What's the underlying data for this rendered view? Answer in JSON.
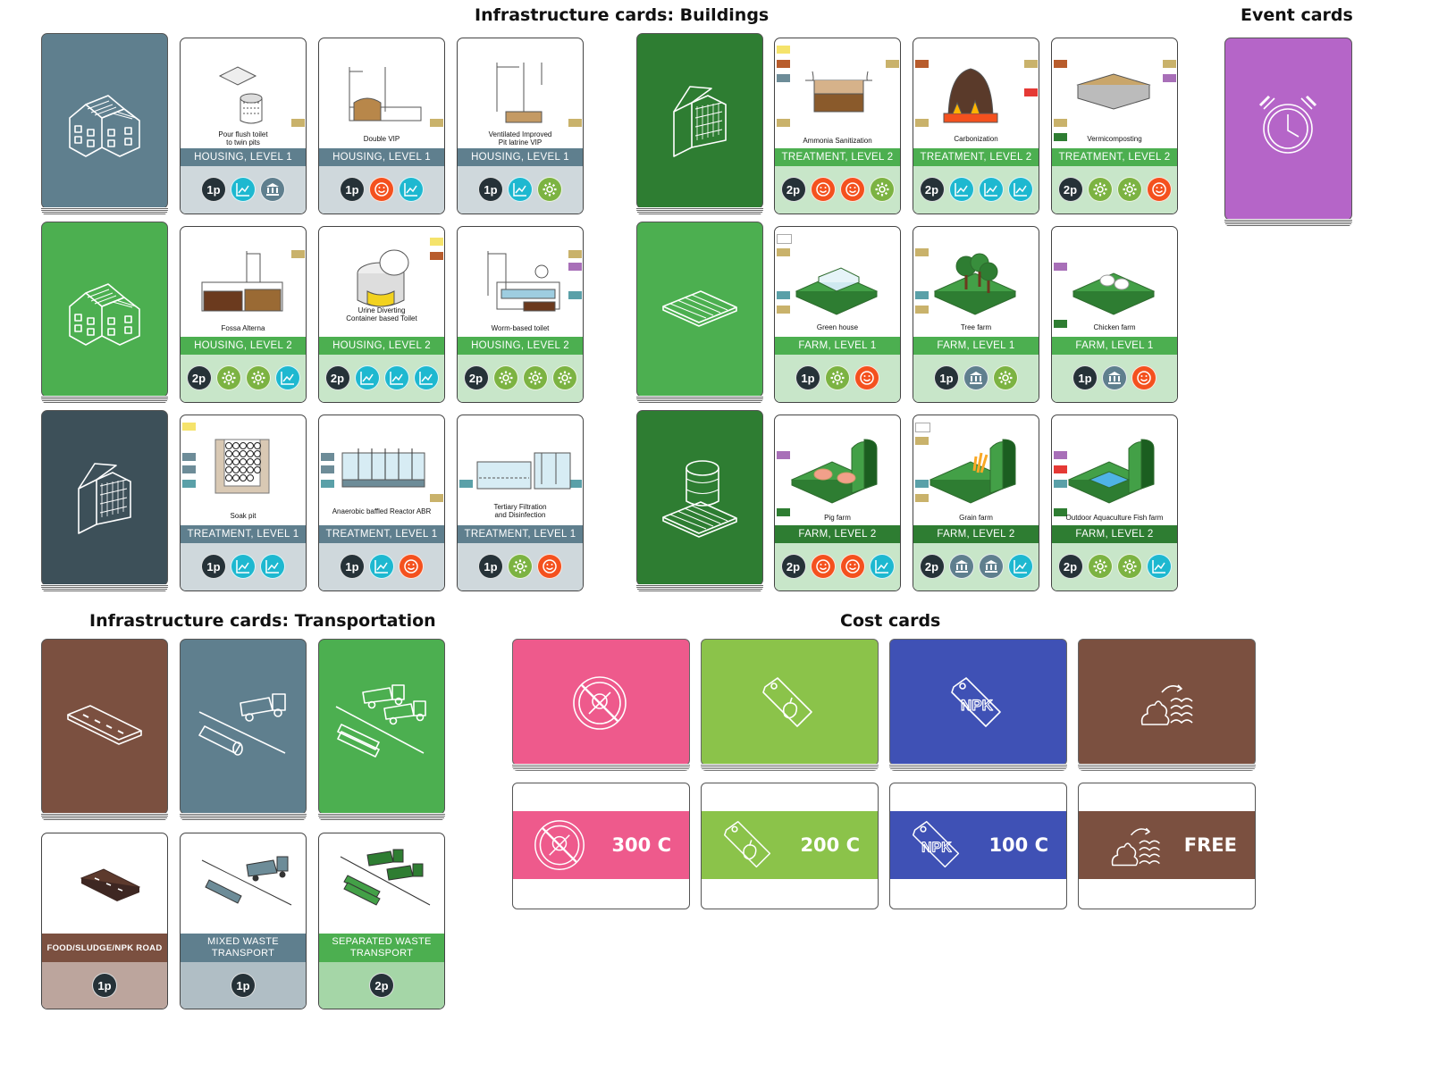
{
  "titles": {
    "buildings": "Infrastructure cards: Buildings",
    "events": "Event cards",
    "transport": "Infrastructure cards: Transportation",
    "cost": "Cost cards"
  },
  "colors": {
    "housing_back": "#5f7f8e",
    "housing2_back": "#4caf50",
    "treatment_back": "#3d5059",
    "farm2_back": "#2e7d32",
    "farm_back": "#4caf50",
    "event_back": "#b565c8",
    "road_back": "#7b5040",
    "transport_mixed": "#5f7f8e",
    "transport_sep": "#4caf50",
    "cost_pink": "#ee5a8c",
    "cost_lime": "#8bc34a",
    "cost_blue": "#3f51b5",
    "cost_brown": "#7b5040",
    "icon_players": "#263238",
    "icon_growth": "#1eb8d0",
    "icon_bank": "#5f7f8e",
    "icon_happy": "#f4511e",
    "icon_gear": "#7cb342"
  },
  "housing": [
    {
      "title": "Pour flush toilet\nto twin pits",
      "band": "HOUSING, LEVEL 1",
      "players": "1p",
      "icons": [
        "growth-icon",
        "bank-icon"
      ]
    },
    {
      "title": "Double VIP",
      "band": "HOUSING, LEVEL 1",
      "players": "1p",
      "icons": [
        "happy-icon",
        "growth-icon"
      ]
    },
    {
      "title": "Ventilated Improved\nPit latrine VIP",
      "band": "HOUSING, LEVEL 1",
      "players": "1p",
      "icons": [
        "growth-icon",
        "gear-icon"
      ]
    },
    {
      "title": "Fossa Alterna",
      "band": "HOUSING, LEVEL 2",
      "players": "2p",
      "icons": [
        "gear-icon",
        "gear-icon",
        "growth-icon"
      ]
    },
    {
      "title": "Urine Diverting\nContainer based Toilet",
      "band": "HOUSING, LEVEL 2",
      "players": "2p",
      "icons": [
        "growth-icon",
        "growth-icon",
        "growth-icon"
      ]
    },
    {
      "title": "Worm-based toilet",
      "band": "HOUSING, LEVEL 2",
      "players": "2p",
      "icons": [
        "gear-icon",
        "gear-icon",
        "gear-icon"
      ]
    },
    {
      "title": "Soak pit",
      "band": "TREATMENT, LEVEL 1",
      "players": "1p",
      "icons": [
        "growth-icon",
        "growth-icon"
      ]
    },
    {
      "title": "Anaerobic baffled Reactor ABR",
      "band": "TREATMENT, LEVEL 1",
      "players": "1p",
      "icons": [
        "growth-icon",
        "happy-icon"
      ]
    },
    {
      "title": "Tertiary Filtration\nand Disinfection",
      "band": "TREATMENT, LEVEL 1",
      "players": "1p",
      "icons": [
        "gear-icon",
        "happy-icon"
      ]
    }
  ],
  "farm": [
    {
      "title": "Ammonia Sanitization",
      "band": "TREATMENT, LEVEL 2",
      "players": "2p",
      "icons": [
        "happy-icon",
        "happy-icon",
        "gear-icon"
      ]
    },
    {
      "title": "Carbonization",
      "band": "TREATMENT, LEVEL 2",
      "players": "2p",
      "icons": [
        "growth-icon",
        "growth-icon",
        "growth-icon"
      ]
    },
    {
      "title": "Vermicomposting",
      "band": "TREATMENT, LEVEL 2",
      "players": "2p",
      "icons": [
        "gear-icon",
        "gear-icon",
        "happy-icon"
      ]
    },
    {
      "title": "Green house",
      "band": "FARM, LEVEL 1",
      "players": "1p",
      "icons": [
        "gear-icon",
        "happy-icon"
      ]
    },
    {
      "title": "Tree farm",
      "band": "FARM, LEVEL 1",
      "players": "1p",
      "icons": [
        "bank-icon",
        "gear-icon"
      ]
    },
    {
      "title": "Chicken farm",
      "band": "FARM, LEVEL 1",
      "players": "1p",
      "icons": [
        "bank-icon",
        "happy-icon"
      ]
    },
    {
      "title": "Pig farm",
      "band": "FARM, LEVEL 2",
      "players": "2p",
      "icons": [
        "happy-icon",
        "happy-icon",
        "growth-icon"
      ]
    },
    {
      "title": "Grain farm",
      "band": "FARM, LEVEL 2",
      "players": "2p",
      "icons": [
        "bank-icon",
        "bank-icon",
        "growth-icon"
      ]
    },
    {
      "title": "Outdoor Aquaculture Fish farm",
      "band": "FARM, LEVEL 2",
      "players": "2p",
      "icons": [
        "gear-icon",
        "gear-icon",
        "growth-icon"
      ]
    }
  ],
  "transport": [
    {
      "band": "FOOD/SLUDGE/NPK ROAD",
      "players": "1p"
    },
    {
      "band": "MIXED WASTE\nTRANSPORT",
      "players": "1p"
    },
    {
      "band": "SEPARATED WASTE\nTRANSPORT",
      "players": "2p"
    }
  ],
  "cost": [
    {
      "value": "300 C",
      "icon": "no-toxic-icon"
    },
    {
      "value": "200 C",
      "icon": "food-tag-icon"
    },
    {
      "value": "100 C",
      "icon": "npk-tag-icon"
    },
    {
      "value": "FREE",
      "icon": "sludge-water-icon"
    }
  ]
}
